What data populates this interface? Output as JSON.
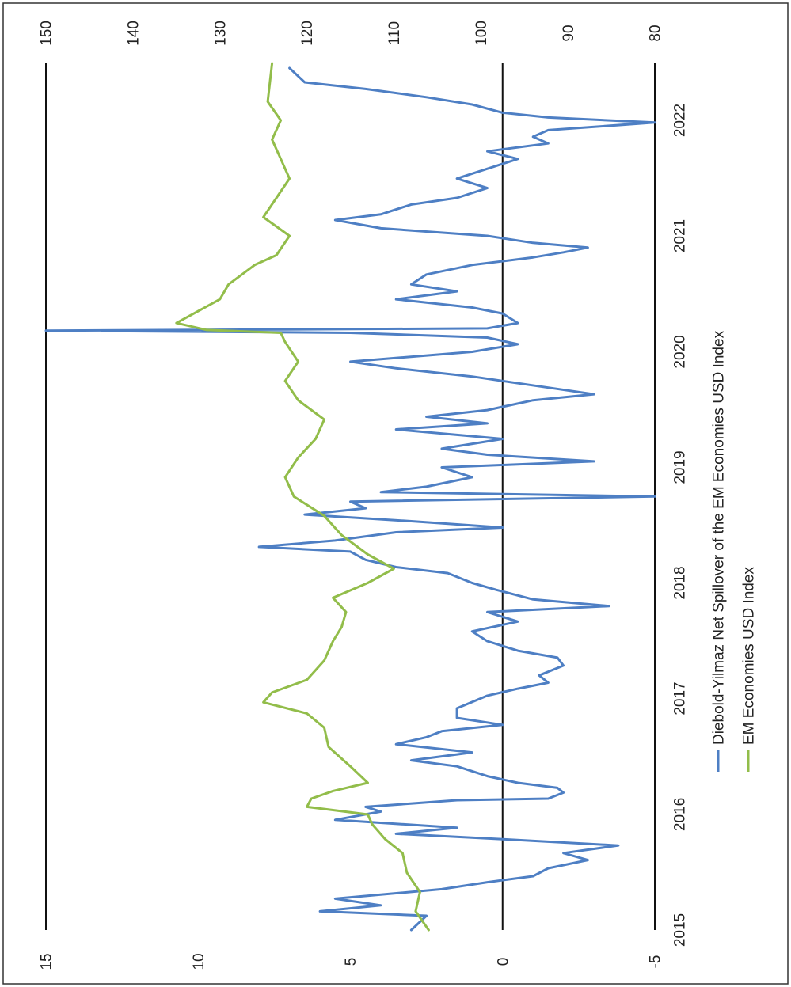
{
  "chart_data": {
    "type": "line",
    "orientation": "rotated-90-clockwise",
    "x": {
      "type": "date",
      "tick_labels": [
        "2015",
        "2016",
        "2017",
        "2018",
        "2019",
        "2020",
        "2021",
        "2022"
      ],
      "range": [
        "2015-01-01",
        "2022-06-30"
      ]
    },
    "y_left": {
      "range": [
        -5,
        15
      ],
      "tick_labels": [
        "-5",
        "0",
        "5",
        "10",
        "15"
      ]
    },
    "y_right": {
      "range": [
        80,
        150
      ],
      "tick_labels": [
        "80",
        "90",
        "100",
        "110",
        "120",
        "130",
        "140",
        "150"
      ]
    },
    "grid": false,
    "legend_position": "bottom-right",
    "series": [
      {
        "name": "Diebold-Yilmaz Net Spillover of the EM Economies USD Index",
        "axis": "left",
        "color": "#4e7fc4",
        "points": [
          [
            "2015-01-01",
            3.0
          ],
          [
            "2015-02-15",
            2.5
          ],
          [
            "2015-03-01",
            6.0
          ],
          [
            "2015-03-20",
            4.0
          ],
          [
            "2015-04-10",
            5.5
          ],
          [
            "2015-05-10",
            2.0
          ],
          [
            "2015-06-01",
            0.5
          ],
          [
            "2015-06-20",
            -1.0
          ],
          [
            "2015-07-15",
            -1.5
          ],
          [
            "2015-08-10",
            -2.8
          ],
          [
            "2015-09-01",
            -2.0
          ],
          [
            "2015-09-25",
            -3.8
          ],
          [
            "2015-10-15",
            0.0
          ],
          [
            "2015-11-01",
            3.5
          ],
          [
            "2015-11-20",
            1.5
          ],
          [
            "2015-12-15",
            5.5
          ],
          [
            "2016-01-10",
            4.0
          ],
          [
            "2016-01-25",
            4.5
          ],
          [
            "2016-02-15",
            1.5
          ],
          [
            "2016-02-20",
            -1.5
          ],
          [
            "2016-03-10",
            -2.0
          ],
          [
            "2016-03-25",
            -1.8
          ],
          [
            "2016-04-10",
            -0.5
          ],
          [
            "2016-05-01",
            0.5
          ],
          [
            "2016-06-01",
            1.5
          ],
          [
            "2016-06-20",
            3.0
          ],
          [
            "2016-07-15",
            1.0
          ],
          [
            "2016-08-10",
            3.5
          ],
          [
            "2016-09-01",
            2.5
          ],
          [
            "2016-09-20",
            2.0
          ],
          [
            "2016-10-10",
            0.0
          ],
          [
            "2016-11-01",
            1.5
          ],
          [
            "2016-12-01",
            1.5
          ],
          [
            "2017-01-10",
            0.5
          ],
          [
            "2017-02-01",
            -0.5
          ],
          [
            "2017-02-20",
            -1.5
          ],
          [
            "2017-03-15",
            -1.2
          ],
          [
            "2017-04-15",
            -2.0
          ],
          [
            "2017-05-10",
            -1.8
          ],
          [
            "2017-06-01",
            -0.5
          ],
          [
            "2017-07-01",
            0.5
          ],
          [
            "2017-08-01",
            1.0
          ],
          [
            "2017-09-01",
            -0.5
          ],
          [
            "2017-10-01",
            0.5
          ],
          [
            "2017-10-20",
            -3.5
          ],
          [
            "2017-11-10",
            -1.0
          ],
          [
            "2017-12-10",
            0.2
          ],
          [
            "2018-01-01",
            1.0
          ],
          [
            "2018-02-01",
            1.8
          ],
          [
            "2018-02-20",
            3.5
          ],
          [
            "2018-03-15",
            4.5
          ],
          [
            "2018-04-10",
            5.0
          ],
          [
            "2018-04-25",
            8.0
          ],
          [
            "2018-05-15",
            5.5
          ],
          [
            "2018-06-10",
            3.5
          ],
          [
            "2018-06-25",
            0.0
          ],
          [
            "2018-07-15",
            3.0
          ],
          [
            "2018-08-05",
            6.5
          ],
          [
            "2018-08-25",
            4.5
          ],
          [
            "2018-09-15",
            5.0
          ],
          [
            "2018-10-01",
            -5.0
          ],
          [
            "2018-10-15",
            4.0
          ],
          [
            "2018-11-01",
            2.5
          ],
          [
            "2018-12-01",
            1.0
          ],
          [
            "2019-01-01",
            2.0
          ],
          [
            "2019-01-20",
            -3.0
          ],
          [
            "2019-02-10",
            0.5
          ],
          [
            "2019-03-01",
            2.0
          ],
          [
            "2019-04-01",
            0.0
          ],
          [
            "2019-05-01",
            3.5
          ],
          [
            "2019-05-20",
            0.5
          ],
          [
            "2019-06-10",
            2.5
          ],
          [
            "2019-07-01",
            0.5
          ],
          [
            "2019-08-01",
            -1.0
          ],
          [
            "2019-08-20",
            -3.0
          ],
          [
            "2019-09-10",
            -1.5
          ],
          [
            "2019-10-15",
            1.0
          ],
          [
            "2019-11-10",
            3.5
          ],
          [
            "2019-12-01",
            5.0
          ],
          [
            "2020-01-01",
            1.0
          ],
          [
            "2020-01-25",
            -0.5
          ],
          [
            "2020-02-15",
            0.5
          ],
          [
            "2020-03-01",
            5.0
          ],
          [
            "2020-03-08",
            15.0
          ],
          [
            "2020-03-15",
            0.5
          ],
          [
            "2020-04-01",
            -0.5
          ],
          [
            "2020-05-01",
            0.0
          ],
          [
            "2020-05-20",
            1.0
          ],
          [
            "2020-06-15",
            3.5
          ],
          [
            "2020-07-10",
            1.5
          ],
          [
            "2020-08-01",
            3.0
          ],
          [
            "2020-09-01",
            2.5
          ],
          [
            "2020-10-01",
            1.0
          ],
          [
            "2020-10-25",
            -1.0
          ],
          [
            "2020-11-10",
            -2.0
          ],
          [
            "2020-11-25",
            -2.8
          ],
          [
            "2020-12-10",
            -1.0
          ],
          [
            "2021-01-01",
            0.5
          ],
          [
            "2021-01-25",
            4.0
          ],
          [
            "2021-02-20",
            5.5
          ],
          [
            "2021-03-10",
            4.0
          ],
          [
            "2021-04-10",
            3.0
          ],
          [
            "2021-05-01",
            1.5
          ],
          [
            "2021-06-01",
            0.5
          ],
          [
            "2021-07-01",
            1.5
          ],
          [
            "2021-08-01",
            0.5
          ],
          [
            "2021-09-01",
            -0.5
          ],
          [
            "2021-09-25",
            0.5
          ],
          [
            "2021-10-20",
            -1.5
          ],
          [
            "2021-11-10",
            -1.0
          ],
          [
            "2021-12-01",
            -1.5
          ],
          [
            "2021-12-25",
            -5.0
          ],
          [
            "2022-01-10",
            -1.5
          ],
          [
            "2022-01-25",
            0.0
          ],
          [
            "2022-02-20",
            1.0
          ],
          [
            "2022-03-15",
            2.5
          ],
          [
            "2022-04-10",
            4.5
          ],
          [
            "2022-05-01",
            6.5
          ],
          [
            "2022-06-15",
            7.0
          ]
        ]
      },
      {
        "name": "EM Economies USD Index",
        "axis": "right",
        "color": "#92bd4a",
        "points": [
          [
            "2015-01-01",
            106.0
          ],
          [
            "2015-03-01",
            107.5
          ],
          [
            "2015-05-01",
            107.0
          ],
          [
            "2015-07-01",
            108.5
          ],
          [
            "2015-09-01",
            109.0
          ],
          [
            "2015-10-15",
            111.0
          ],
          [
            "2015-12-01",
            112.5
          ],
          [
            "2016-01-01",
            113.0
          ],
          [
            "2016-01-25",
            120.0
          ],
          [
            "2016-02-20",
            119.5
          ],
          [
            "2016-03-15",
            117.0
          ],
          [
            "2016-04-10",
            113.0
          ],
          [
            "2016-06-01",
            115.0
          ],
          [
            "2016-08-01",
            117.5
          ],
          [
            "2016-10-01",
            118.0
          ],
          [
            "2016-11-15",
            120.0
          ],
          [
            "2016-12-20",
            125.0
          ],
          [
            "2017-01-20",
            124.0
          ],
          [
            "2017-03-01",
            120.0
          ],
          [
            "2017-05-01",
            118.0
          ],
          [
            "2017-07-01",
            117.0
          ],
          [
            "2017-08-15",
            116.0
          ],
          [
            "2017-10-01",
            115.5
          ],
          [
            "2017-11-15",
            117.0
          ],
          [
            "2018-01-01",
            113.0
          ],
          [
            "2018-02-15",
            110.0
          ],
          [
            "2018-04-01",
            113.0
          ],
          [
            "2018-06-01",
            116.0
          ],
          [
            "2018-08-01",
            118.0
          ],
          [
            "2018-10-01",
            121.5
          ],
          [
            "2018-12-01",
            122.5
          ],
          [
            "2019-02-01",
            121.0
          ],
          [
            "2019-04-01",
            119.0
          ],
          [
            "2019-06-01",
            118.0
          ],
          [
            "2019-08-01",
            121.0
          ],
          [
            "2019-10-01",
            122.5
          ],
          [
            "2019-12-01",
            121.0
          ],
          [
            "2020-02-01",
            122.5
          ],
          [
            "2020-03-01",
            123.0
          ],
          [
            "2020-03-10",
            131.5
          ],
          [
            "2020-04-01",
            135.0
          ],
          [
            "2020-05-01",
            133.0
          ],
          [
            "2020-06-15",
            130.0
          ],
          [
            "2020-08-01",
            129.0
          ],
          [
            "2020-10-01",
            126.0
          ],
          [
            "2020-11-01",
            123.5
          ],
          [
            "2021-01-01",
            122.0
          ],
          [
            "2021-03-01",
            125.0
          ],
          [
            "2021-05-01",
            123.5
          ],
          [
            "2021-07-01",
            122.0
          ],
          [
            "2021-09-01",
            123.0
          ],
          [
            "2021-11-01",
            124.0
          ],
          [
            "2022-01-01",
            123.0
          ],
          [
            "2022-03-01",
            124.5
          ],
          [
            "2022-06-30",
            124.0
          ]
        ]
      }
    ]
  }
}
